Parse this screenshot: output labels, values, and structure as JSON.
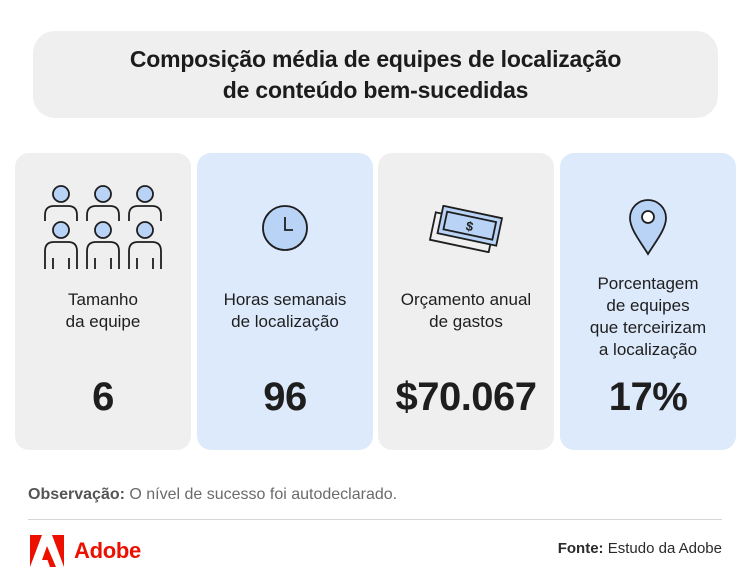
{
  "header": {
    "title_line1": "Composição média de equipes de localização",
    "title_line2": "de conteúdo bem-sucedidas"
  },
  "cards": [
    {
      "icon": "team-icon",
      "label_line1": "Tamanho",
      "label_line2": "da equipe",
      "value": "6"
    },
    {
      "icon": "clock-icon",
      "label_line1": "Horas semanais",
      "label_line2": "de localização",
      "value": "96"
    },
    {
      "icon": "money-icon",
      "label_line1": "Orçamento anual",
      "label_line2": "de gastos",
      "value": "$70.067"
    },
    {
      "icon": "location-pin-icon",
      "label_line1": "Porcentagem",
      "label_line2": "de equipes",
      "label_line3": "que terceirizam",
      "label_line4": "a localização",
      "value": "17%"
    }
  ],
  "footer": {
    "note_label": "Observação:",
    "note_text": " O nível de sucesso foi autodeclarado.",
    "brand": "Adobe",
    "source_label": "Fonte:",
    "source_text": " Estudo da Adobe"
  },
  "colors": {
    "card_grey": "#efefef",
    "card_blue": "#ddeafc",
    "icon_fill": "#b9d3f7",
    "adobe_red": "#eb1000"
  }
}
